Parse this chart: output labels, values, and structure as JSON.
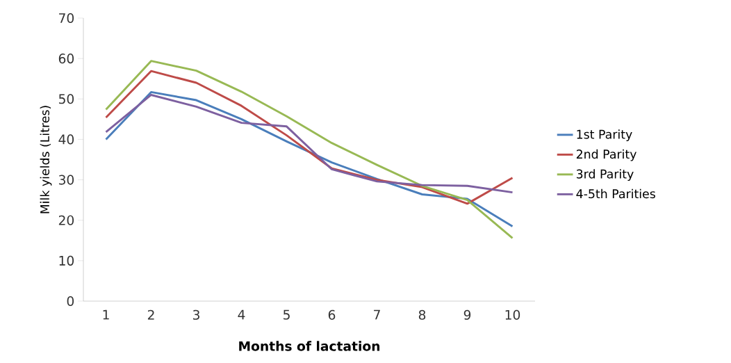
{
  "chart_data": {
    "type": "line",
    "xlabel": "Months of lactation",
    "ylabel": "Milk yields (Litres)",
    "categories": [
      "1",
      "2",
      "3",
      "4",
      "5",
      "6",
      "7",
      "8",
      "9",
      "10"
    ],
    "ylim": [
      0,
      70
    ],
    "yticks": [
      0,
      10,
      20,
      30,
      40,
      50,
      60,
      70
    ],
    "grid": false,
    "legend": "right",
    "marker": "none",
    "line_style": "solid",
    "series": [
      {
        "name": "1st Parity",
        "color": "#4a7ebb",
        "values": [
          40,
          51.7,
          49.7,
          45,
          39.5,
          34.3,
          30.2,
          26.4,
          25.3,
          18.5
        ]
      },
      {
        "name": "2nd Parity",
        "color": "#be4b48",
        "values": [
          45.4,
          56.9,
          54,
          48.3,
          41,
          32.8,
          30,
          28.2,
          24.1,
          30.5
        ]
      },
      {
        "name": "3rd Parity",
        "color": "#98b954",
        "values": [
          47.4,
          59.4,
          57,
          51.8,
          45.7,
          39.1,
          33.7,
          28.5,
          25,
          15.6
        ]
      },
      {
        "name": "4-5th Parities",
        "color": "#7d60a0",
        "values": [
          41.8,
          51,
          48.1,
          44.1,
          43.2,
          32.6,
          29.6,
          28.7,
          28.5,
          26.9
        ]
      }
    ]
  }
}
